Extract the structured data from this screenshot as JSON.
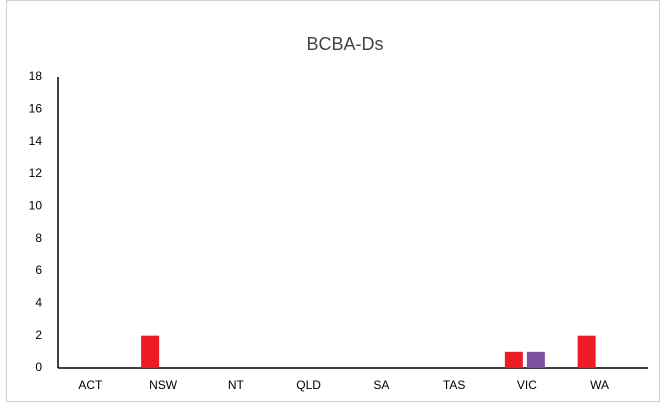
{
  "chart_data": {
    "type": "bar",
    "title": "BCBA-Ds",
    "categories": [
      "ACT",
      "NSW",
      "NT",
      "QLD",
      "SA",
      "TAS",
      "VIC",
      "WA"
    ],
    "series": [
      {
        "color": "#ed1c24",
        "values": [
          0,
          2,
          0,
          0,
          0,
          0,
          1,
          2
        ]
      },
      {
        "color": "#7f4fa0",
        "values": [
          0,
          0,
          0,
          0,
          0,
          0,
          1,
          0
        ]
      }
    ],
    "ylim": [
      0,
      18
    ],
    "yticks": [
      0,
      2,
      4,
      6,
      8,
      10,
      12,
      14,
      16,
      18
    ],
    "grid": false
  }
}
